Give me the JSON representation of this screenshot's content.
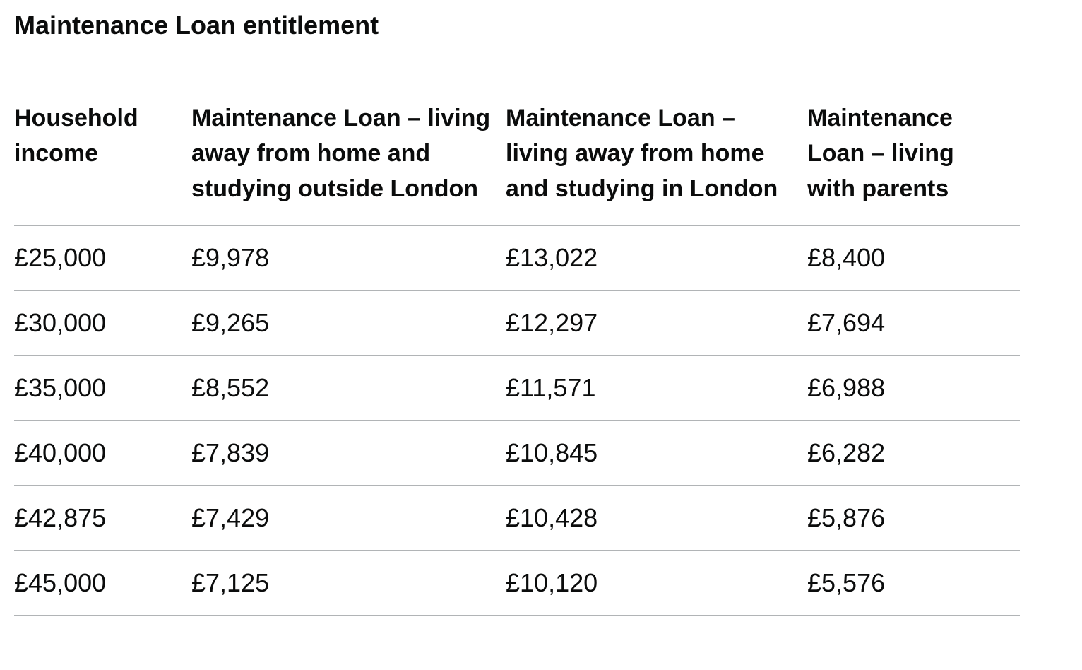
{
  "caption": "Maintenance Loan entitlement",
  "headers": [
    "Household income",
    "Maintenance Loan – living away from home and studying outside London",
    "Maintenance Loan – living away from home and studying in London",
    "Maintenance Loan – living with parents"
  ],
  "rows": [
    [
      "£25,000",
      "£9,978",
      "£13,022",
      "£8,400"
    ],
    [
      "£30,000",
      "£9,265",
      "£12,297",
      "£7,694"
    ],
    [
      "£35,000",
      "£8,552",
      "£11,571",
      "£6,988"
    ],
    [
      "£40,000",
      "£7,839",
      "£10,845",
      "£6,282"
    ],
    [
      "£42,875",
      "£7,429",
      "£10,428",
      "£5,876"
    ],
    [
      "£45,000",
      "£7,125",
      "£10,120",
      "£5,576"
    ]
  ]
}
